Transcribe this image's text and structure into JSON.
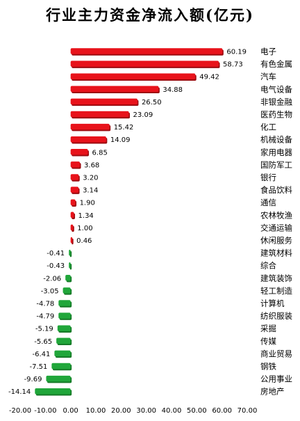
{
  "chart_data": {
    "type": "bar",
    "orientation": "horizontal",
    "title": "行业主力资金净流入额(亿元)",
    "categories": [
      "电子",
      "有色金属",
      "汽车",
      "电气设备",
      "非银金融",
      "医药生物",
      "化工",
      "机械设备",
      "家用电器",
      "国防军工",
      "银行",
      "食品饮料",
      "通信",
      "农林牧渔",
      "交通运输",
      "休闲服务",
      "建筑材料",
      "综合",
      "建筑装饰",
      "轻工制造",
      "计算机",
      "纺织服装",
      "采掘",
      "传媒",
      "商业贸易",
      "钢铁",
      "公用事业",
      "房地产"
    ],
    "values": [
      60.19,
      58.73,
      49.42,
      34.88,
      26.5,
      23.09,
      15.42,
      14.09,
      6.85,
      3.68,
      3.2,
      3.14,
      1.9,
      1.34,
      1.0,
      0.46,
      -0.41,
      -0.43,
      -2.06,
      -3.05,
      -4.78,
      -4.79,
      -5.19,
      -5.65,
      -6.41,
      -7.51,
      -9.69,
      -14.14
    ],
    "value_labels": [
      "60.19",
      "58.73",
      "49.42",
      "34.88",
      "26.50",
      "23.09",
      "15.42",
      "14.09",
      "6.85",
      "3.68",
      "3.20",
      "3.14",
      "1.90",
      "1.34",
      "1.00",
      "0.46",
      "-0.41",
      "-0.43",
      "-2.06",
      "-3.05",
      "-4.78",
      "-4.79",
      "-5.19",
      "-5.65",
      "-6.41",
      "-7.51",
      "-9.69",
      "-14.14"
    ],
    "xlim": [
      -20,
      70
    ],
    "xticks": [
      -20,
      -10,
      0,
      10,
      20,
      30,
      40,
      50,
      60,
      70
    ],
    "xtick_labels": [
      "-20.00",
      "-10.00",
      "0.00",
      "10.00",
      "20.00",
      "30.00",
      "40.00",
      "50.00",
      "60.00",
      "70.00"
    ],
    "colors": {
      "positive": "#e8131b",
      "positive_dark": "#9e0b10",
      "negative": "#20a63a",
      "negative_dark": "#157a27"
    },
    "grid": false,
    "legend": "none"
  }
}
